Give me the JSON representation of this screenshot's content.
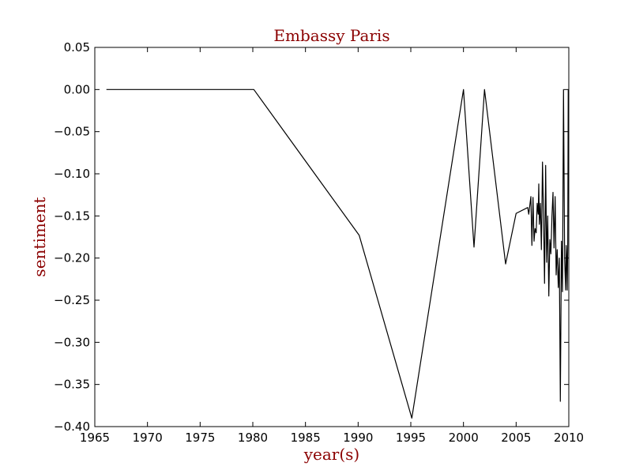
{
  "chart_data": {
    "type": "line",
    "title": "Embassy Paris",
    "xlabel": "year(s)",
    "ylabel": "sentiment",
    "xlim": [
      1965,
      2010
    ],
    "ylim": [
      -0.4,
      0.05
    ],
    "x_ticks": [
      "1965",
      "1970",
      "1975",
      "1980",
      "1985",
      "1990",
      "1995",
      "2000",
      "2005",
      "2010"
    ],
    "y_ticks": [
      "0.05",
      "0.00",
      "−0.05",
      "−0.10",
      "−0.15",
      "−0.20",
      "−0.25",
      "−0.30",
      "−0.35",
      "−0.40"
    ],
    "grid": false,
    "series": [
      {
        "color": "#000000",
        "x": [
          1966.1,
          1980.1,
          1990.1,
          1995.1,
          2000.0,
          2001.0,
          2002.0,
          2004.0,
          2005.0,
          2006.1,
          2006.2,
          2006.4,
          2006.5,
          2006.6,
          2006.7,
          2006.8,
          2006.9,
          2007.0,
          2007.1,
          2007.15,
          2007.2,
          2007.3,
          2007.4,
          2007.5,
          2007.6,
          2007.7,
          2007.8,
          2007.9,
          2008.0,
          2008.1,
          2008.2,
          2008.3,
          2008.4,
          2008.5,
          2008.6,
          2008.7,
          2008.8,
          2008.9,
          2009.0,
          2009.1,
          2009.2,
          2009.3,
          2009.4,
          2009.5,
          2009.6,
          2009.7,
          2009.75,
          2009.8,
          2009.85,
          2009.9,
          2009.95
        ],
        "y": [
          0.0,
          0.0,
          -0.173,
          -0.39,
          0.0,
          -0.187,
          0.0,
          -0.207,
          -0.147,
          -0.14,
          -0.148,
          -0.127,
          -0.185,
          -0.128,
          -0.18,
          -0.165,
          -0.17,
          -0.135,
          -0.148,
          -0.112,
          -0.16,
          -0.135,
          -0.19,
          -0.086,
          -0.15,
          -0.23,
          -0.09,
          -0.205,
          -0.15,
          -0.245,
          -0.178,
          -0.195,
          -0.15,
          -0.122,
          -0.188,
          -0.127,
          -0.22,
          -0.19,
          -0.235,
          -0.2,
          -0.37,
          -0.18,
          -0.24,
          0.0,
          -0.2,
          -0.238,
          -0.185,
          -0.2,
          -0.238,
          -0.18,
          0.0
        ]
      }
    ],
    "colors": {
      "title": "#8b0000",
      "axis_label": "#8b0000",
      "line": "#000000"
    }
  }
}
